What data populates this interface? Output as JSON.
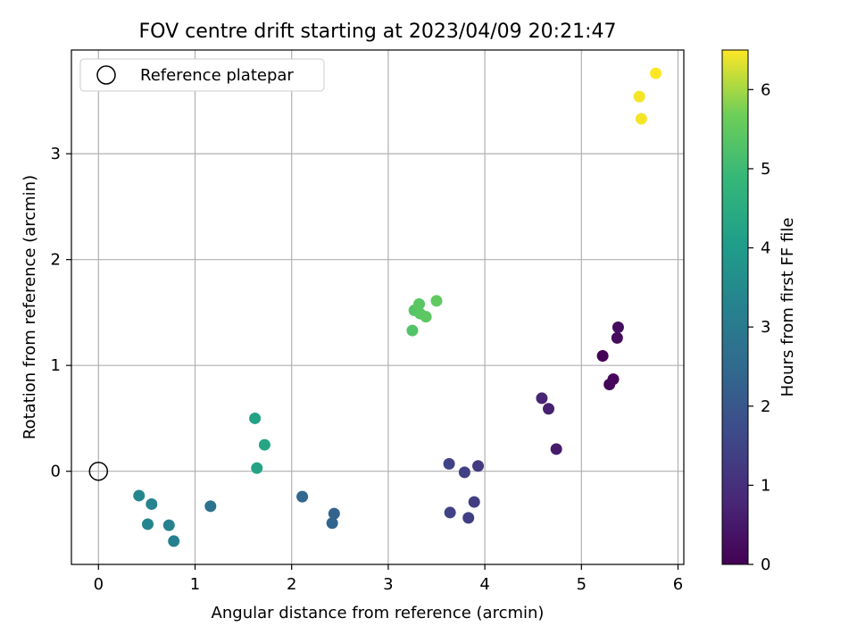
{
  "chart_data": {
    "type": "scatter",
    "title": "FOV centre drift starting at 2023/04/09 20:21:47",
    "xlabel": "Angular distance from reference (arcmin)",
    "ylabel": "Rotation from reference (arcmin)",
    "xlim": [
      -0.28,
      6.06
    ],
    "ylim": [
      -0.88,
      3.98
    ],
    "xticks": [
      0,
      1,
      2,
      3,
      4,
      5,
      6
    ],
    "yticks": [
      0,
      1,
      2,
      3
    ],
    "grid": true,
    "legend": {
      "position": "top-left",
      "entries": [
        {
          "label": "Reference platepar",
          "marker": "open-circle",
          "color": "#000000"
        }
      ]
    },
    "reference_point": {
      "x": 0,
      "y": 0
    },
    "colorbar": {
      "label": "Hours from first FF file",
      "min": 0,
      "max": 6.5,
      "ticks": [
        0,
        1,
        2,
        3,
        4,
        5,
        6
      ],
      "colormap": "viridis"
    },
    "points": [
      {
        "x": 5.22,
        "y": 1.09,
        "c": 0.05
      },
      {
        "x": 5.29,
        "y": 0.82,
        "c": 0.1
      },
      {
        "x": 5.33,
        "y": 0.87,
        "c": 0.15
      },
      {
        "x": 5.37,
        "y": 1.26,
        "c": 0.2
      },
      {
        "x": 5.38,
        "y": 1.36,
        "c": 0.25
      },
      {
        "x": 4.74,
        "y": 0.21,
        "c": 0.55
      },
      {
        "x": 4.66,
        "y": 0.59,
        "c": 0.65
      },
      {
        "x": 4.59,
        "y": 0.69,
        "c": 0.75
      },
      {
        "x": 3.93,
        "y": 0.05,
        "c": 1.25
      },
      {
        "x": 3.89,
        "y": -0.29,
        "c": 1.3
      },
      {
        "x": 3.83,
        "y": -0.44,
        "c": 1.35
      },
      {
        "x": 3.79,
        "y": -0.01,
        "c": 1.4
      },
      {
        "x": 3.64,
        "y": -0.39,
        "c": 1.45
      },
      {
        "x": 3.63,
        "y": 0.07,
        "c": 1.5
      },
      {
        "x": 2.44,
        "y": -0.4,
        "c": 2.3
      },
      {
        "x": 2.42,
        "y": -0.49,
        "c": 2.35
      },
      {
        "x": 2.11,
        "y": -0.24,
        "c": 2.4
      },
      {
        "x": 1.16,
        "y": -0.33,
        "c": 2.75
      },
      {
        "x": 0.78,
        "y": -0.66,
        "c": 3.2
      },
      {
        "x": 0.73,
        "y": -0.51,
        "c": 3.25
      },
      {
        "x": 0.55,
        "y": -0.31,
        "c": 3.3
      },
      {
        "x": 0.51,
        "y": -0.5,
        "c": 3.35
      },
      {
        "x": 0.42,
        "y": -0.23,
        "c": 3.4
      },
      {
        "x": 1.62,
        "y": 0.5,
        "c": 4.2
      },
      {
        "x": 1.64,
        "y": 0.03,
        "c": 4.25
      },
      {
        "x": 1.72,
        "y": 0.25,
        "c": 4.3
      },
      {
        "x": 3.25,
        "y": 1.33,
        "c": 5.3
      },
      {
        "x": 3.27,
        "y": 1.52,
        "c": 5.35
      },
      {
        "x": 3.32,
        "y": 1.58,
        "c": 5.4
      },
      {
        "x": 3.33,
        "y": 1.49,
        "c": 5.4
      },
      {
        "x": 3.39,
        "y": 1.46,
        "c": 5.45
      },
      {
        "x": 3.5,
        "y": 1.61,
        "c": 5.5
      },
      {
        "x": 5.6,
        "y": 3.54,
        "c": 6.45
      },
      {
        "x": 5.62,
        "y": 3.33,
        "c": 6.45
      },
      {
        "x": 5.77,
        "y": 3.76,
        "c": 6.5
      }
    ]
  }
}
